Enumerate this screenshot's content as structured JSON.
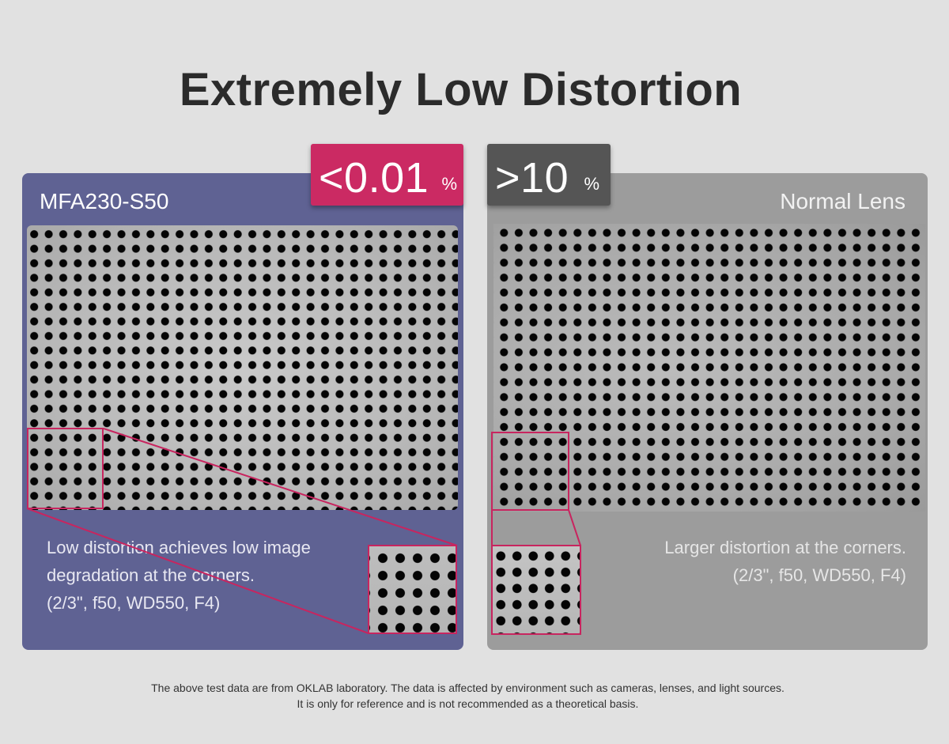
{
  "title": "Extremely Low Distortion",
  "left_panel": {
    "label": "MFA230-S50",
    "badge_value": "<0.01",
    "badge_unit": "%",
    "badge_color": "#cb2a63",
    "panel_color": "#5f6293",
    "description": [
      "Low distortion achieves low image",
      "degradation at the corners.",
      "(2/3\", f50, WD550, F4)"
    ]
  },
  "right_panel": {
    "label": "Normal Lens",
    "badge_value": ">10",
    "badge_unit": "%",
    "badge_color": "#555555",
    "panel_color": "#9c9c9c",
    "description": [
      "Larger distortion at the corners.",
      "(2/3\", f50, WD550, F4)"
    ]
  },
  "highlight_color": "#c8255f",
  "footnote": [
    "The above test data are from OKLAB laboratory. The data is affected by environment such as cameras, lenses, and light sources.",
    "It is only for reference and is not recommended as a theoretical basis."
  ]
}
